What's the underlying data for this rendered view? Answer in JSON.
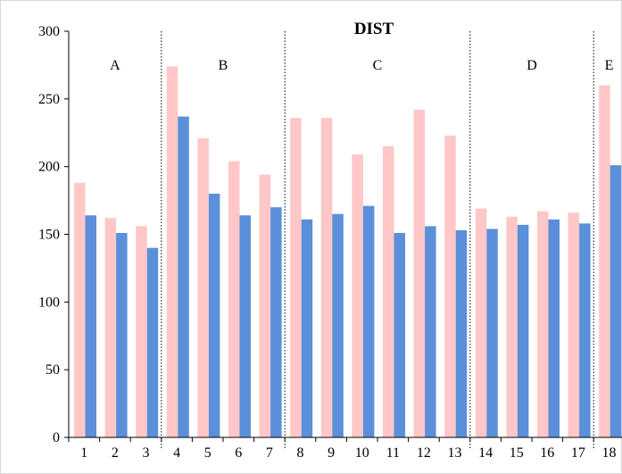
{
  "chart_data": {
    "type": "bar",
    "title": "DIST",
    "xlabel": "",
    "ylabel": "",
    "categories": [
      "1",
      "2",
      "3",
      "4",
      "5",
      "6",
      "7",
      "8",
      "9",
      "10",
      "11",
      "12",
      "13",
      "14",
      "15",
      "16",
      "17",
      "18"
    ],
    "series": [
      {
        "color": "#ffc7c7",
        "values": [
          188,
          162,
          156,
          274,
          221,
          204,
          194,
          236,
          236,
          209,
          215,
          242,
          223,
          169,
          163,
          167,
          166,
          260
        ]
      },
      {
        "color": "#5b8fd9",
        "values": [
          164,
          151,
          140,
          237,
          180,
          164,
          170,
          161,
          165,
          171,
          151,
          156,
          153,
          154,
          157,
          161,
          158,
          201
        ]
      }
    ],
    "ylim": [
      0,
      300
    ],
    "yticks": [
      0,
      50,
      100,
      150,
      200,
      250,
      300
    ],
    "grid": false,
    "groups": [
      {
        "label": "A",
        "start": 1,
        "end": 3
      },
      {
        "label": "B",
        "start": 4,
        "end": 7
      },
      {
        "label": "C",
        "start": 8,
        "end": 13
      },
      {
        "label": "D",
        "start": 14,
        "end": 17
      },
      {
        "label": "E",
        "start": 18,
        "end": 18
      }
    ]
  }
}
